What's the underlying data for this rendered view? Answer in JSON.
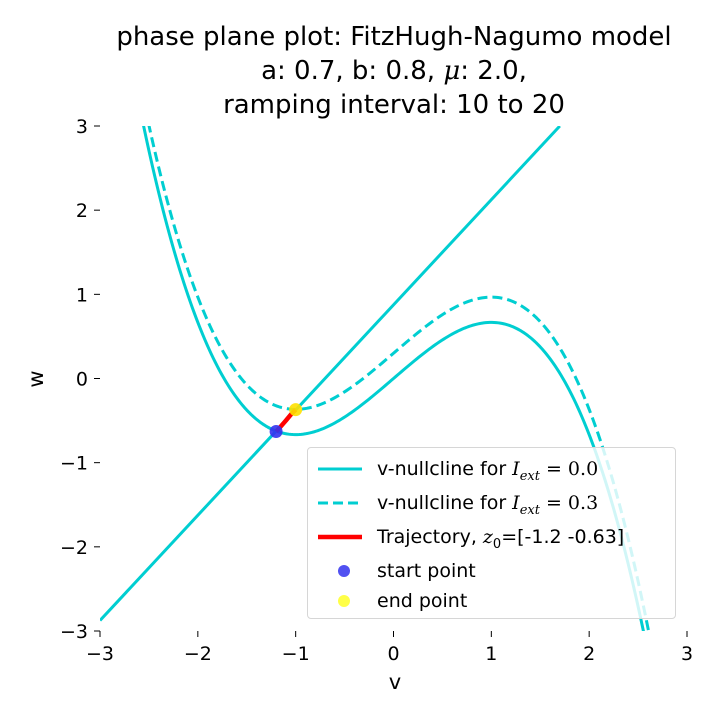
{
  "title": {
    "line1": "phase plane plot: FitzHugh-Nagumo model",
    "line2_prefix": "a: 0.7, b: 0.8, ",
    "line2_mu": "μ",
    "line2_suffix": ": 2.0,",
    "line3": "ramping interval: 10 to 20"
  },
  "colors": {
    "nullcline": "#00CED1",
    "trajectory": "#FF0000",
    "start_point": "#3333EE",
    "end_point": "#FFE000"
  },
  "legend": {
    "entries": [
      {
        "prefix": "v-nullcline for ",
        "math_var": "I",
        "math_sub": "ext",
        "math_rest": " = 0.0",
        "style": "solid"
      },
      {
        "prefix": "v-nullcline for ",
        "math_var": "I",
        "math_sub": "ext",
        "math_rest": " = 0.3",
        "style": "dashed"
      },
      {
        "prefix": "Trajectory, ",
        "math_var": "z",
        "math_sub": "0",
        "math_rest": "=[-1.2  -0.63]",
        "style": "trajectory"
      },
      {
        "prefix": "start point",
        "math_var": "",
        "math_sub": "",
        "math_rest": "",
        "style": "start"
      },
      {
        "prefix": "end point",
        "math_var": "",
        "math_sub": "",
        "math_rest": "",
        "style": "end"
      }
    ]
  },
  "chart_data": {
    "type": "line",
    "title": "phase plane plot: FitzHugh-Nagumo model\na: 0.7, b: 0.8, μ: 2.0,\nramping interval: 10 to 20",
    "xlabel": "v",
    "ylabel": "w",
    "xlim": [
      -3,
      3
    ],
    "ylim": [
      -3,
      3
    ],
    "xticks": [
      -3,
      -2,
      -1,
      0,
      1,
      2,
      3
    ],
    "yticks": [
      -3,
      -2,
      -1,
      0,
      1,
      2,
      3
    ],
    "grid": false,
    "legend_position": "lower right",
    "series": [
      {
        "name": "v-nullcline for I_ext = 0.0",
        "style": "solid",
        "kind": "cubic",
        "equation": "w = v - v^3/3 + 0.0",
        "v_range": [
          -2.57,
          2.57
        ]
      },
      {
        "name": "v-nullcline for I_ext = 0.3",
        "style": "dashed",
        "kind": "cubic",
        "equation": "w = v - v^3/3 + 0.3",
        "v_range": [
          -2.57,
          2.61
        ]
      },
      {
        "kind": "linear",
        "style": "solid",
        "equation": "w = (v + 0.7) / 0.8",
        "v_range": [
          -3,
          1.7
        ]
      },
      {
        "name": "Trajectory, z0=[-1.2  -0.63]",
        "style": "trajectory",
        "x": [
          -1.2,
          -1.16,
          -1.1,
          -1.05,
          -1.0
        ],
        "y": [
          -0.63,
          -0.58,
          -0.5,
          -0.43,
          -0.37
        ]
      },
      {
        "name": "start point",
        "style": "marker",
        "x": [
          -1.2
        ],
        "y": [
          -0.63
        ]
      },
      {
        "name": "end point",
        "style": "marker",
        "x": [
          -1.0
        ],
        "y": [
          -0.37
        ]
      }
    ]
  }
}
